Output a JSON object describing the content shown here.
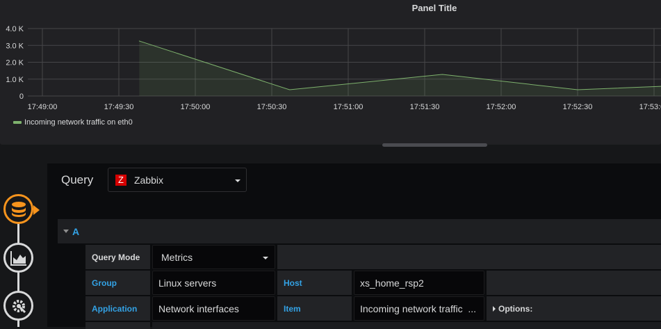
{
  "panel": {
    "title": "Panel Title"
  },
  "chart_data": {
    "type": "area",
    "title": "Panel Title",
    "x_ticks": [
      "17:49:00",
      "17:49:30",
      "17:50:00",
      "17:50:30",
      "17:51:00",
      "17:51:30",
      "17:52:00",
      "17:52:30",
      "17:53:00"
    ],
    "y_ticks": [
      "0",
      "1.0 K",
      "2.0 K",
      "3.0 K",
      "4.0 K"
    ],
    "ylim": [
      0,
      4000
    ],
    "grid": true,
    "legend_placement": "bottom-left",
    "series": [
      {
        "name": "Incoming network traffic on eth0",
        "color": "#7eb26d",
        "x": [
          "17:49:38",
          "17:50:37",
          "17:51:37",
          "17:52:30",
          "17:53:04"
        ],
        "y": [
          3260,
          370,
          1280,
          370,
          580
        ]
      }
    ]
  },
  "editor": {
    "query_label": "Query",
    "datasource": {
      "icon": "Z",
      "name": "Zabbix",
      "icon_color": "#d40000"
    },
    "row": {
      "name": "A"
    },
    "fields": {
      "query_mode_label": "Query Mode",
      "query_mode_value": "Metrics",
      "group_label": "Group",
      "group_value": "Linux servers",
      "host_label": "Host",
      "host_value": "xs_home_rsp2",
      "application_label": "Application",
      "application_value": "Network interfaces",
      "item_label": "Item",
      "item_value": "Incoming network traffic  ...",
      "options_label": "Options:"
    }
  },
  "sidebar": {
    "items": [
      {
        "icon": "database-icon",
        "active": true
      },
      {
        "icon": "visualization-icon"
      },
      {
        "icon": "settings-icon"
      }
    ]
  }
}
